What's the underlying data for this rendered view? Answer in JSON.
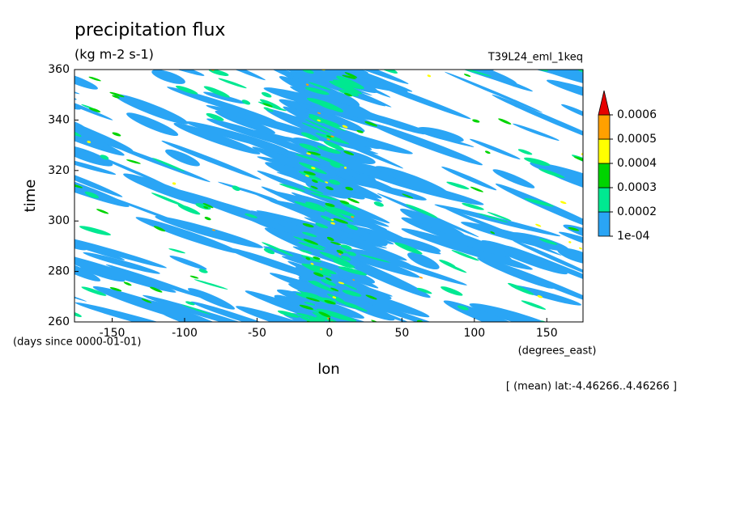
{
  "chart_data": {
    "type": "contour",
    "title": "precipitation flux",
    "subtitle": "(kg m-2 s-1)",
    "run_label": "T39L24_eml_1keq",
    "x_label": "lon",
    "x_units": "(degrees_east)",
    "y_label": "time",
    "y_units": "(days since 0000-01-01)",
    "annotation": "[ (mean) lat:-4.46266..4.46266 ]",
    "xlim": [
      -176,
      175
    ],
    "xticks": [
      -150,
      -100,
      -50,
      0,
      50,
      100,
      150
    ],
    "ylim": [
      260,
      360
    ],
    "yticks": [
      260,
      280,
      300,
      320,
      340,
      360
    ],
    "levels": [
      {
        "value": 0.0001,
        "label": "1e-04"
      },
      0.0002,
      0.0003,
      0.0004,
      0.0005,
      0.0006
    ],
    "level_colors": [
      "#2aa5f5",
      "#00e891",
      "#00d400",
      "#ffff00",
      "#ffa000",
      "#e60000"
    ]
  }
}
